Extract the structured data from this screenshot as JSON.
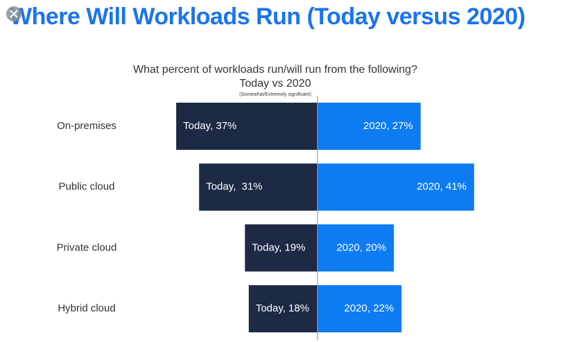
{
  "chart_data": {
    "type": "diverging-bar",
    "title": "Where Will Workloads Run (Today versus 2020)",
    "subtitle": "What percent of workloads run/will run from the following?",
    "subtitle2": "Today vs 2020",
    "note": "(Somewhat/Extremely significant)",
    "categories": [
      "On-premises",
      "Public cloud",
      "Private cloud",
      "Hybrid cloud"
    ],
    "series": [
      {
        "color": "#1d2a45",
        "values": [
          37,
          31,
          19,
          18
        ],
        "value_labels": [
          "Today, 37%",
          "Today,  31%",
          "Today, 19%",
          "Today, 18%"
        ]
      },
      {
        "color": "#0d7cf2",
        "values": [
          27,
          41,
          20,
          22
        ],
        "value_labels": [
          "2020, 27%",
          "2020, 41%",
          "2020, 20%",
          "2020, 22%"
        ]
      }
    ]
  }
}
